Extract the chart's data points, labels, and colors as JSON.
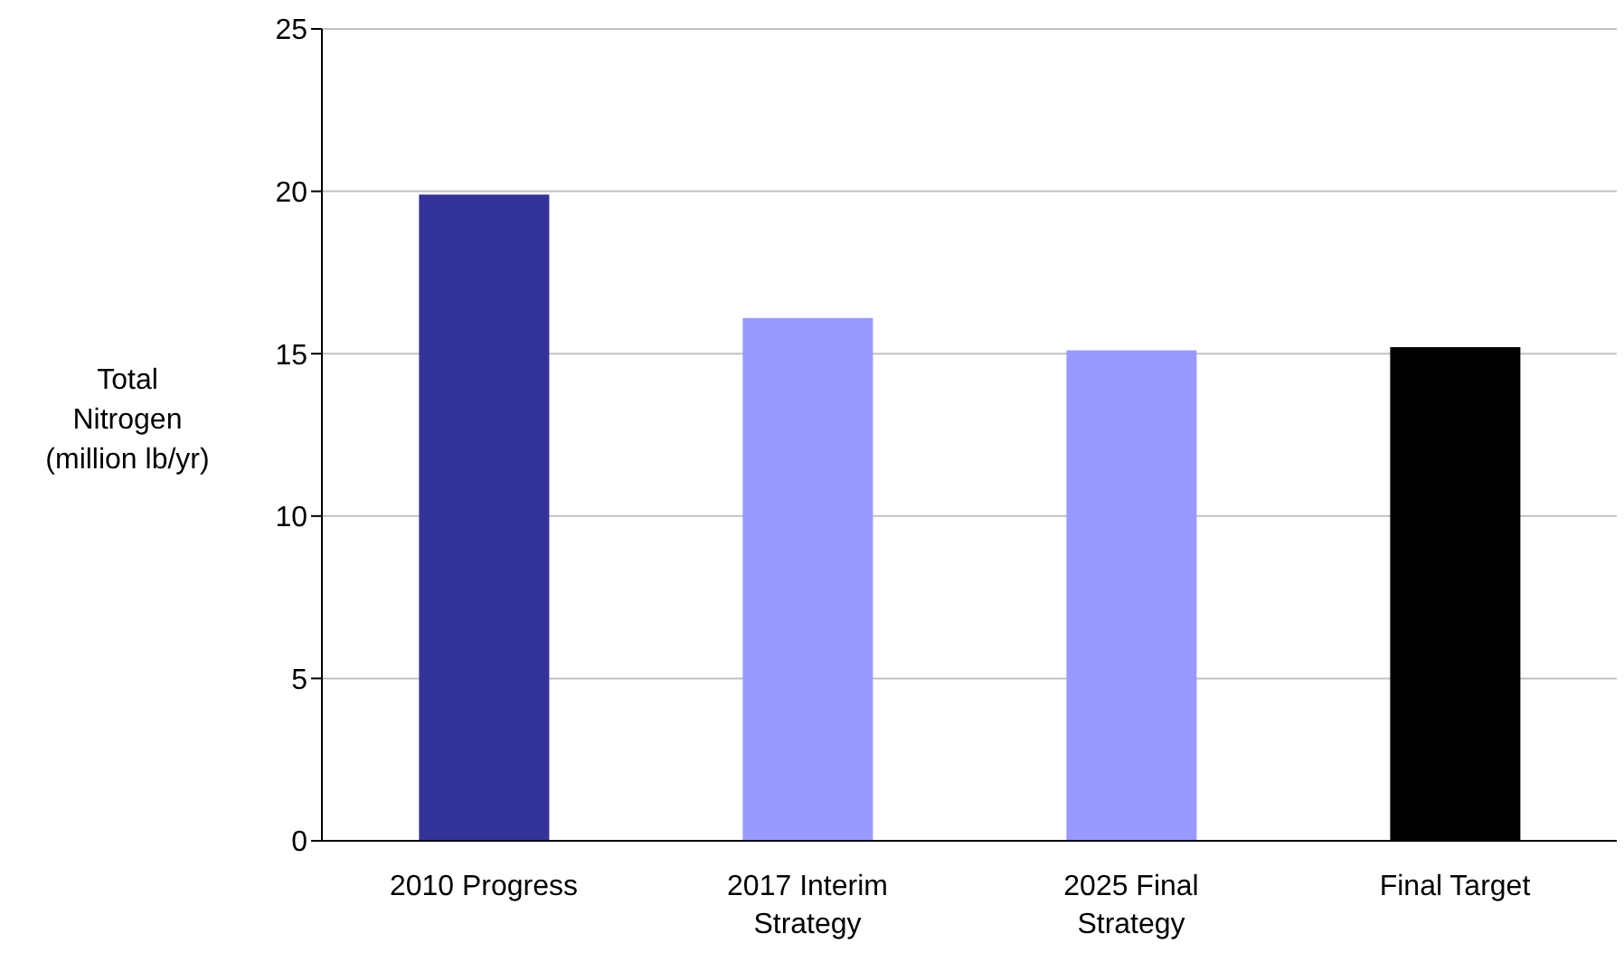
{
  "chart_data": {
    "type": "bar",
    "ylabel": "Total Nitrogen (million lb/yr)",
    "categories": [
      "2010 Progress",
      "2017 Interim Strategy",
      "2025 Final Strategy",
      "Final Target"
    ],
    "values": [
      19.9,
      16.1,
      15.1,
      15.2
    ],
    "colors": [
      "#333399",
      "#9999ff",
      "#9999ff",
      "#000000"
    ],
    "ylim": [
      0,
      25
    ],
    "yticks": [
      0,
      5,
      10,
      15,
      20,
      25
    ],
    "grid": "y"
  }
}
